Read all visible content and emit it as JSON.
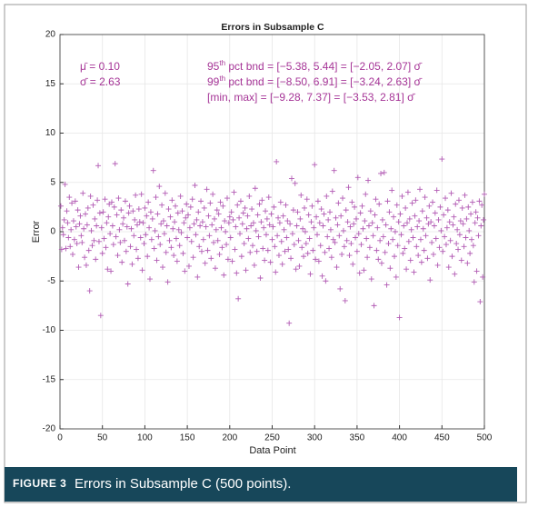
{
  "chart_data": {
    "type": "scatter",
    "title": "Errors in Subsample C",
    "xlabel": "Data Point",
    "ylabel": "Error",
    "color": "#b25bb4",
    "grid": true,
    "xlim": [
      0,
      500
    ],
    "ylim": [
      -20,
      20
    ],
    "xticks": [
      0,
      50,
      100,
      150,
      200,
      250,
      300,
      350,
      400,
      450,
      500
    ],
    "yticks": [
      -20,
      -15,
      -10,
      -5,
      0,
      5,
      10,
      15,
      20
    ],
    "annotations": {
      "left": [
        "μ̄  =  0.10",
        "σ̄  =  2.63"
      ],
      "right": [
        [
          "95",
          "th",
          " pct bnd  =  [−5.38, 5.44]  =  [−2.05, 2.07] σ̄"
        ],
        [
          "99",
          "th",
          " pct bnd  =  [−8.50, 6.91]  =  [−3.24, 2.63] σ̄"
        ],
        [
          "",
          "",
          "[min, max]   =  [−9.28, 7.37]  =  [−3.53, 2.81] σ̄"
        ]
      ]
    },
    "caption": {
      "label": "FIGURE 3",
      "text": "Errors in Subsample C (500 points)."
    },
    "x": [
      1,
      2,
      3,
      4,
      5,
      6,
      7,
      8,
      9,
      10,
      11,
      12,
      13,
      14,
      15,
      16,
      17,
      18,
      19,
      20,
      21,
      22,
      23,
      24,
      25,
      26,
      27,
      28,
      29,
      30,
      31,
      32,
      33,
      34,
      35,
      36,
      37,
      38,
      39,
      40,
      41,
      42,
      43,
      44,
      45,
      46,
      47,
      48,
      49,
      50,
      51,
      52,
      53,
      54,
      55,
      56,
      57,
      58,
      59,
      60,
      61,
      62,
      63,
      64,
      65,
      66,
      67,
      68,
      69,
      70,
      71,
      72,
      73,
      74,
      75,
      76,
      77,
      78,
      79,
      80,
      81,
      82,
      83,
      84,
      85,
      86,
      87,
      88,
      89,
      90,
      91,
      92,
      93,
      94,
      95,
      96,
      97,
      98,
      99,
      100,
      101,
      102,
      103,
      104,
      105,
      106,
      107,
      108,
      109,
      110,
      111,
      112,
      113,
      114,
      115,
      116,
      117,
      118,
      119,
      120,
      121,
      122,
      123,
      124,
      125,
      126,
      127,
      128,
      129,
      130,
      131,
      132,
      133,
      134,
      135,
      136,
      137,
      138,
      139,
      140,
      141,
      142,
      143,
      144,
      145,
      146,
      147,
      148,
      149,
      150,
      151,
      152,
      153,
      154,
      155,
      156,
      157,
      158,
      159,
      160,
      161,
      162,
      163,
      164,
      165,
      166,
      167,
      168,
      169,
      170,
      171,
      172,
      173,
      174,
      175,
      176,
      177,
      178,
      179,
      180,
      181,
      182,
      183,
      184,
      185,
      186,
      187,
      188,
      189,
      190,
      191,
      192,
      193,
      194,
      195,
      196,
      197,
      198,
      199,
      200,
      201,
      202,
      203,
      204,
      205,
      206,
      207,
      208,
      209,
      210,
      211,
      212,
      213,
      214,
      215,
      216,
      217,
      218,
      219,
      220,
      221,
      222,
      223,
      224,
      225,
      226,
      227,
      228,
      229,
      230,
      231,
      232,
      233,
      234,
      235,
      236,
      237,
      238,
      239,
      240,
      241,
      242,
      243,
      244,
      245,
      246,
      247,
      248,
      249,
      250,
      251,
      252,
      253,
      254,
      255,
      256,
      257,
      258,
      259,
      260,
      261,
      262,
      263,
      264,
      265,
      266,
      267,
      268,
      269,
      270,
      271,
      272,
      273,
      274,
      275,
      276,
      277,
      278,
      279,
      280,
      281,
      282,
      283,
      284,
      285,
      286,
      287,
      288,
      289,
      290,
      291,
      292,
      293,
      294,
      295,
      296,
      297,
      298,
      299,
      300,
      301,
      302,
      303,
      304,
      305,
      306,
      307,
      308,
      309,
      310,
      311,
      312,
      313,
      314,
      315,
      316,
      317,
      318,
      319,
      320,
      321,
      322,
      323,
      324,
      325,
      326,
      327,
      328,
      329,
      330,
      331,
      332,
      333,
      334,
      335,
      336,
      337,
      338,
      339,
      340,
      341,
      342,
      343,
      344,
      345,
      346,
      347,
      348,
      349,
      350,
      351,
      352,
      353,
      354,
      355,
      356,
      357,
      358,
      359,
      360,
      361,
      362,
      363,
      364,
      365,
      366,
      367,
      368,
      369,
      370,
      371,
      372,
      373,
      374,
      375,
      376,
      377,
      378,
      379,
      380,
      381,
      382,
      383,
      384,
      385,
      386,
      387,
      388,
      389,
      390,
      391,
      392,
      393,
      394,
      395,
      396,
      397,
      398,
      399,
      400,
      401,
      402,
      403,
      404,
      405,
      406,
      407,
      408,
      409,
      410,
      411,
      412,
      413,
      414,
      415,
      416,
      417,
      418,
      419,
      420,
      421,
      422,
      423,
      424,
      425,
      426,
      427,
      428,
      429,
      430,
      431,
      432,
      433,
      434,
      435,
      436,
      437,
      438,
      439,
      440,
      441,
      442,
      443,
      444,
      445,
      446,
      447,
      448,
      449,
      450,
      451,
      452,
      453,
      454,
      455,
      456,
      457,
      458,
      459,
      460,
      461,
      462,
      463,
      464,
      465,
      466,
      467,
      468,
      469,
      470,
      471,
      472,
      473,
      474,
      475,
      476,
      477,
      478,
      479,
      480,
      481,
      482,
      483,
      484,
      485,
      486,
      487,
      488,
      489,
      490,
      491,
      492,
      493,
      494,
      495,
      496,
      497,
      498,
      499,
      500
    ],
    "values": [
      2.6,
      -1.8,
      0.4,
      -0.3,
      1.2,
      4.8,
      -1.7,
      2.1,
      0.9,
      -0.6,
      3.5,
      -1.5,
      0.2,
      2.9,
      -2.3,
      1.1,
      -0.8,
      3.1,
      0.5,
      -1.2,
      2.2,
      -3.6,
      0.8,
      1.6,
      -0.4,
      -1.1,
      3.9,
      0.3,
      -2.6,
      1.8,
      -3.4,
      0.7,
      2.4,
      -1.9,
      -6.0,
      3.6,
      0.1,
      -1.4,
      2.7,
      -0.9,
      1.3,
      -2.8,
      0.6,
      3.2,
      6.7,
      -1.0,
      1.9,
      -8.5,
      0.4,
      -2.2,
      2.0,
      -0.7,
      3.3,
      -1.6,
      0.9,
      -3.8,
      1.5,
      2.8,
      -0.2,
      -4.0,
      3.0,
      0.6,
      -1.3,
      2.5,
      6.9,
      -0.5,
      1.7,
      -2.4,
      3.4,
      0.2,
      -1.1,
      2.2,
      -3.1,
      0.8,
      1.4,
      -0.9,
      3.1,
      -2.0,
      0.5,
      -5.3,
      1.9,
      2.6,
      -1.5,
      0.3,
      -3.3,
      2.1,
      -0.4,
      1.2,
      3.7,
      -1.8,
      0.7,
      -2.7,
      2.3,
      1.0,
      -0.6,
      3.8,
      -3.9,
      0.9,
      -1.2,
      2.4,
      -0.3,
      1.6,
      -2.5,
      3.0,
      0.4,
      -4.8,
      2.0,
      -0.8,
      1.3,
      6.2,
      -1.7,
      0.1,
      3.5,
      -2.9,
      1.8,
      -0.5,
      4.6,
      -1.3,
      0.8,
      2.7,
      -3.6,
      1.1,
      -0.2,
      3.9,
      -2.1,
      0.6,
      -5.1,
      2.3,
      -0.9,
      1.5,
      -1.6,
      3.2,
      0.3,
      -2.4,
      1.0,
      2.6,
      -0.7,
      -3.0,
      1.9,
      0.2,
      -1.4,
      3.6,
      -0.1,
      2.1,
      -2.2,
      0.9,
      -4.0,
      1.4,
      2.8,
      -0.6,
      1.7,
      -3.5,
      0.4,
      2.5,
      -1.0,
      3.3,
      -2.6,
      0.8,
      4.7,
      -0.3,
      1.2,
      -4.6,
      2.0,
      -1.5,
      0.6,
      3.1,
      -2.0,
      1.0,
      -0.8,
      2.4,
      -3.2,
      0.5,
      4.3,
      -1.9,
      1.6,
      -0.4,
      2.9,
      -2.7,
      0.7,
      3.8,
      -1.1,
      1.3,
      -3.7,
      0.2,
      2.2,
      -0.9,
      1.8,
      -2.3,
      3.0,
      0.4,
      -1.6,
      2.6,
      -4.4,
      1.1,
      0.0,
      -1.3,
      3.4,
      -2.8,
      0.9,
      1.5,
      -0.6,
      2.0,
      -3.0,
      1.2,
      4.0,
      -1.8,
      0.5,
      -4.2,
      2.7,
      -6.8,
      1.4,
      -0.2,
      3.1,
      -2.5,
      0.8,
      1.9,
      -1.2,
      2.4,
      -3.9,
      0.3,
      1.6,
      -0.7,
      3.6,
      -2.1,
      0.6,
      2.3,
      -1.4,
      0.9,
      -3.4,
      4.4,
      0.1,
      -2.0,
      1.7,
      -0.5,
      2.8,
      -4.7,
      1.0,
      3.2,
      -1.7,
      0.4,
      -2.9,
      2.1,
      -0.3,
      1.3,
      -1.9,
      3.5,
      0.7,
      -3.1,
      1.8,
      -0.8,
      0.5,
      2.5,
      -1.5,
      -4.1,
      7.1,
      -0.4,
      1.4,
      -2.4,
      0.9,
      3.0,
      -1.0,
      -3.3,
      1.6,
      0.2,
      -2.0,
      2.7,
      -0.6,
      1.1,
      -1.8,
      -9.28,
      0.8,
      -2.7,
      5.4,
      -0.2,
      2.2,
      -1.3,
      4.9,
      -3.8,
      0.6,
      2.0,
      -0.9,
      -3.5,
      1.3,
      3.7,
      -1.6,
      0.3,
      -2.5,
      2.4,
      0.0,
      -1.2,
      3.3,
      -2.2,
      1.7,
      -0.7,
      -4.3,
      1.0,
      2.6,
      -1.9,
      0.4,
      6.8,
      -2.8,
      1.5,
      -0.3,
      3.1,
      -3.0,
      0.9,
      -1.4,
      2.3,
      -4.5,
      0.6,
      1.8,
      -2.1,
      -5.0,
      3.6,
      -0.5,
      1.2,
      -1.7,
      2.0,
      0.2,
      -2.6,
      4.1,
      -0.8,
      6.2,
      -1.1,
      1.4,
      -3.6,
      0.7,
      2.9,
      -0.4,
      -5.8,
      1.6,
      -2.3,
      3.4,
      0.1,
      -1.5,
      -7.0,
      2.2,
      -0.9,
      1.0,
      4.5,
      -2.4,
      0.5,
      -1.2,
      3.0,
      -3.3,
      0.8,
      2.5,
      -0.6,
      1.3,
      -2.0,
      5.5,
      -0.2,
      -4.2,
      1.9,
      -1.3,
      2.6,
      0.3,
      -3.9,
      1.1,
      3.8,
      -0.7,
      -2.6,
      5.2,
      0.6,
      -1.6,
      2.1,
      -4.8,
      0.9,
      -0.4,
      -7.5,
      1.7,
      3.3,
      -1.9,
      0.4,
      -2.8,
      2.8,
      -0.9,
      5.9,
      -3.2,
      1.2,
      -0.5,
      6.0,
      -2.1,
      0.7,
      -5.4,
      3.1,
      -1.2,
      2.0,
      -3.7,
      0.3,
      4.2,
      -0.8,
      1.5,
      -2.5,
      0.0,
      -4.6,
      2.7,
      -1.4,
      1.0,
      -8.7,
      1.8,
      -0.3,
      3.6,
      -2.2,
      0.6,
      -1.7,
      2.4,
      -3.8,
      0.9,
      4.0,
      -1.0,
      1.3,
      -2.9,
      0.2,
      2.9,
      -0.6,
      -4.1,
      1.6,
      3.2,
      -1.5,
      0.5,
      -2.4,
      1.1,
      4.3,
      -0.8,
      -3.1,
      2.1,
      0.3,
      -1.9,
      3.5,
      -0.4,
      1.4,
      -2.7,
      0.8,
      2.6,
      -4.9,
      1.0,
      -1.1,
      3.0,
      -2.3,
      0.6,
      1.9,
      -0.7,
      4.2,
      -3.4,
      1.2,
      -1.6,
      2.5,
      0.1,
      7.37,
      -2.0,
      1.7,
      -0.5,
      3.4,
      -1.3,
      0.4,
      2.2,
      -3.6,
      1.0,
      -0.9,
      3.9,
      -2.5,
      0.7,
      1.5,
      -4.3,
      2.8,
      -1.2,
      0.2,
      -1.8,
      3.2,
      -0.3,
      1.1,
      -2.9,
      2.4,
      0.8,
      -1.5,
      3.7,
      -0.6,
      1.3,
      -3.2,
      2.5,
      0.1,
      -2.2,
      1.8,
      -0.8,
      3.0,
      -1.4,
      -5.1,
      0.9,
      2.0,
      -4.0,
      1.4,
      -0.4,
      3.1,
      -7.1,
      0.6,
      2.7,
      -4.6,
      1.2,
      3.8
    ]
  }
}
